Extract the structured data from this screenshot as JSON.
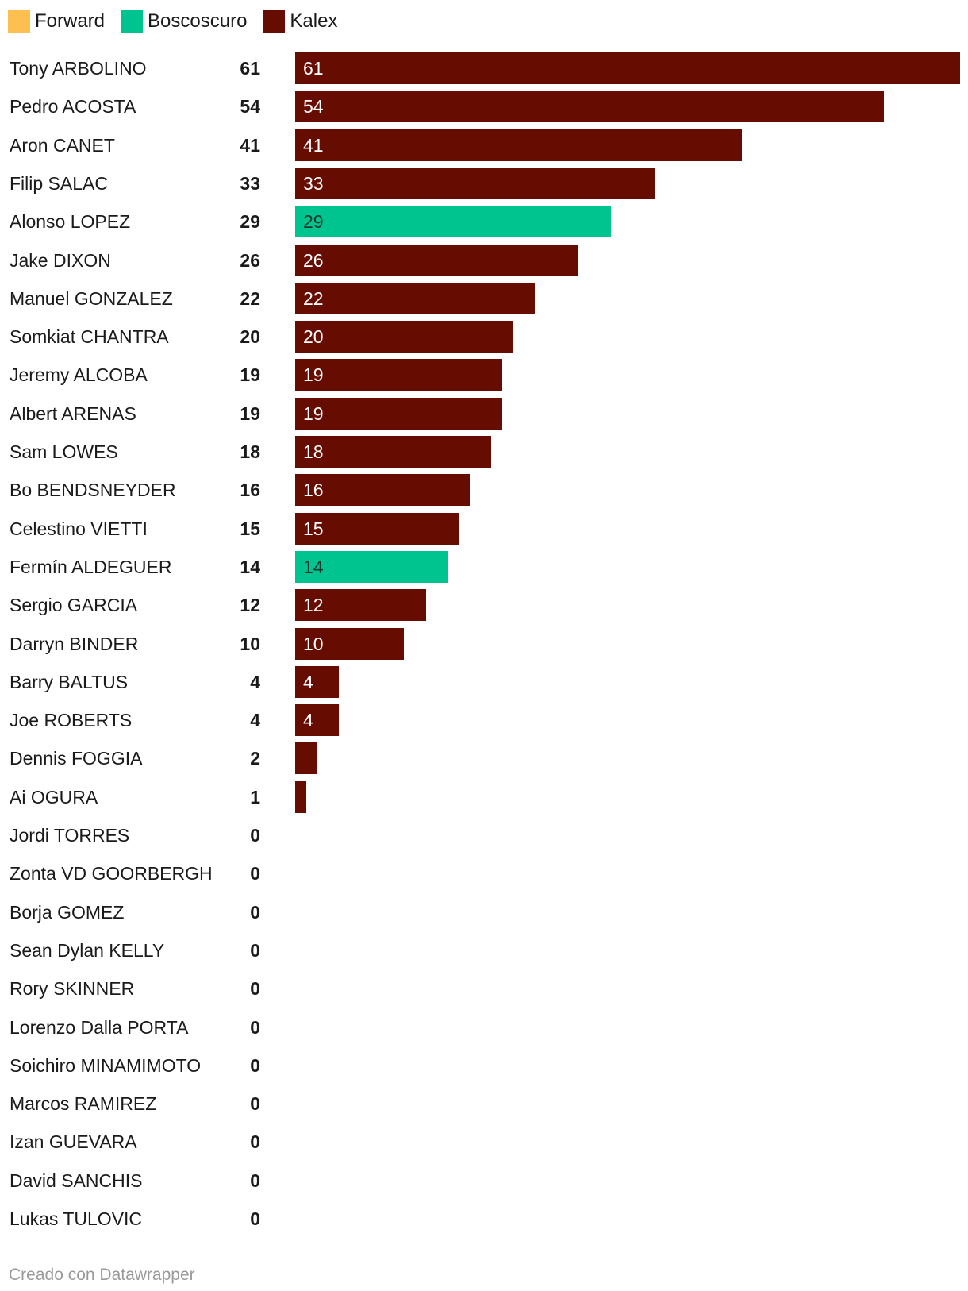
{
  "legend": [
    {
      "label": "Forward",
      "color": "#fdbf4f"
    },
    {
      "label": "Boscoscuro",
      "color": "#00c48f"
    },
    {
      "label": "Kalex",
      "color": "#660c01"
    }
  ],
  "chart_data": {
    "type": "bar",
    "orientation": "horizontal",
    "xlim": [
      0,
      61
    ],
    "show_bar_labels": true,
    "bar_label_colors": {
      "Boscoscuro": "#1a3a30",
      "Kalex": "#ffffff",
      "Forward": "#1a1a1a"
    },
    "rows": [
      {
        "name": "Tony ARBOLINO",
        "value": 61,
        "team": "Kalex"
      },
      {
        "name": "Pedro ACOSTA",
        "value": 54,
        "team": "Kalex"
      },
      {
        "name": "Aron CANET",
        "value": 41,
        "team": "Kalex"
      },
      {
        "name": "Filip SALAC",
        "value": 33,
        "team": "Kalex"
      },
      {
        "name": "Alonso LOPEZ",
        "value": 29,
        "team": "Boscoscuro"
      },
      {
        "name": "Jake DIXON",
        "value": 26,
        "team": "Kalex"
      },
      {
        "name": "Manuel GONZALEZ",
        "value": 22,
        "team": "Kalex"
      },
      {
        "name": "Somkiat CHANTRA",
        "value": 20,
        "team": "Kalex"
      },
      {
        "name": "Jeremy ALCOBA",
        "value": 19,
        "team": "Kalex"
      },
      {
        "name": "Albert ARENAS",
        "value": 19,
        "team": "Kalex"
      },
      {
        "name": "Sam LOWES",
        "value": 18,
        "team": "Kalex"
      },
      {
        "name": "Bo BENDSNEYDER",
        "value": 16,
        "team": "Kalex"
      },
      {
        "name": "Celestino VIETTI",
        "value": 15,
        "team": "Kalex"
      },
      {
        "name": "Fermín ALDEGUER",
        "value": 14,
        "team": "Boscoscuro"
      },
      {
        "name": "Sergio GARCIA",
        "value": 12,
        "team": "Kalex"
      },
      {
        "name": "Darryn BINDER",
        "value": 10,
        "team": "Kalex"
      },
      {
        "name": "Barry BALTUS",
        "value": 4,
        "team": "Kalex"
      },
      {
        "name": "Joe ROBERTS",
        "value": 4,
        "team": "Kalex"
      },
      {
        "name": "Dennis FOGGIA",
        "value": 2,
        "team": "Kalex"
      },
      {
        "name": "Ai OGURA",
        "value": 1,
        "team": "Kalex"
      },
      {
        "name": "Jordi TORRES",
        "value": 0,
        "team": "Kalex"
      },
      {
        "name": "Zonta VD GOORBERGH",
        "value": 0,
        "team": "Kalex"
      },
      {
        "name": "Borja GOMEZ",
        "value": 0,
        "team": "Kalex"
      },
      {
        "name": "Sean Dylan KELLY",
        "value": 0,
        "team": "Kalex"
      },
      {
        "name": "Rory SKINNER",
        "value": 0,
        "team": "Kalex"
      },
      {
        "name": "Lorenzo Dalla PORTA",
        "value": 0,
        "team": "Kalex"
      },
      {
        "name": "Soichiro MINAMIMOTO",
        "value": 0,
        "team": "Kalex"
      },
      {
        "name": "Marcos RAMIREZ",
        "value": 0,
        "team": "Kalex"
      },
      {
        "name": "Izan GUEVARA",
        "value": 0,
        "team": "Kalex"
      },
      {
        "name": "David SANCHIS",
        "value": 0,
        "team": "Kalex"
      },
      {
        "name": "Lukas TULOVIC",
        "value": 0,
        "team": "Kalex"
      }
    ]
  },
  "footer": {
    "credit": "Creado con Datawrapper"
  }
}
